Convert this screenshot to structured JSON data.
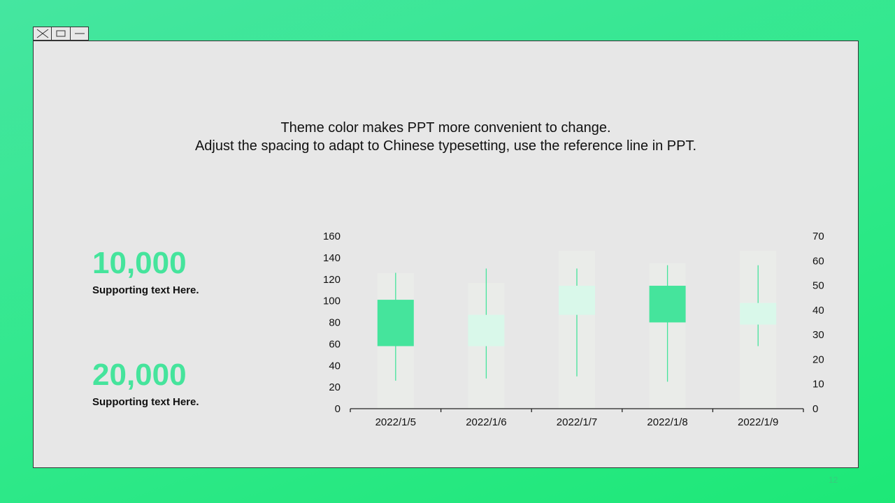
{
  "window_controls": {
    "close_icon": "close-x-icon",
    "maximize_icon": "maximize-icon",
    "minimize_icon": "minimize-icon"
  },
  "slide": {
    "subtitle_line1": "Theme  color makes PPT more convenient to change.",
    "subtitle_line2": "Adjust the spacing to adapt to Chinese typesetting, use the reference line in PPT.",
    "stats": [
      {
        "value": "10,000",
        "label": "Supporting text Here."
      },
      {
        "value": "20,000",
        "label": "Supporting text Here."
      }
    ],
    "page_number": "12"
  },
  "colors": {
    "accent": "#45e49c",
    "up_candle": "#d9f8ea",
    "down_candle": "#45e49c",
    "volume_bar": "#eaece9"
  },
  "chart_data": {
    "type": "candlestick",
    "categories": [
      "2022/1/5",
      "2022/1/6",
      "2022/1/7",
      "2022/1/8",
      "2022/1/9"
    ],
    "ohlc": [
      {
        "open": 101,
        "high": 126,
        "low": 26,
        "close": 58
      },
      {
        "open": 58,
        "high": 130,
        "low": 28,
        "close": 87
      },
      {
        "open": 87,
        "high": 130,
        "low": 30,
        "close": 114
      },
      {
        "open": 114,
        "high": 133,
        "low": 25,
        "close": 80
      },
      {
        "open": 78,
        "high": 133,
        "low": 58,
        "close": 98
      }
    ],
    "volume": [
      55,
      51,
      64,
      59,
      64
    ],
    "y_left": {
      "min": 0,
      "max": 160,
      "ticks": [
        0,
        20,
        40,
        60,
        80,
        100,
        120,
        140,
        160
      ]
    },
    "y_right": {
      "min": 0,
      "max": 70,
      "ticks": [
        0,
        10,
        20,
        30,
        40,
        50,
        60,
        70
      ]
    },
    "grid": false
  }
}
